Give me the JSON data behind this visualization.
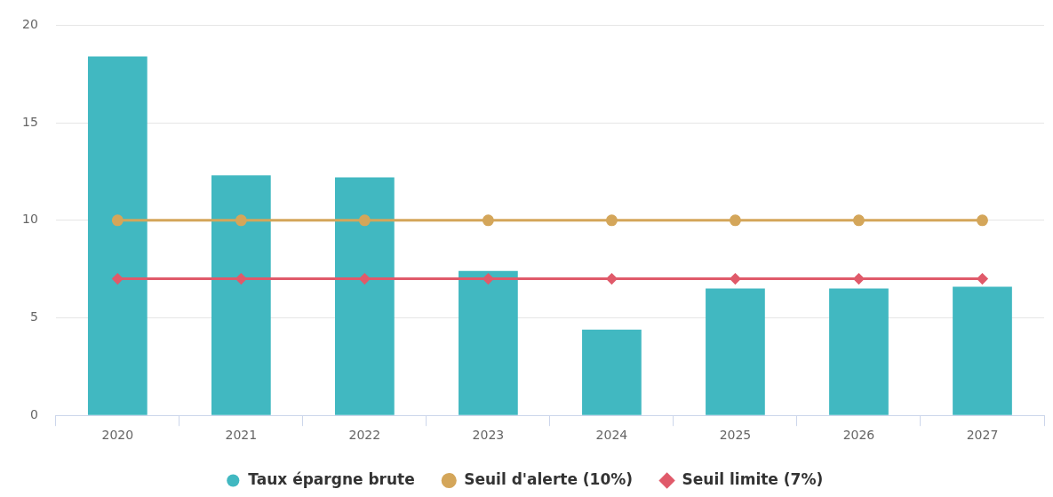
{
  "chart_data": {
    "type": "bar",
    "categories": [
      "2020",
      "2021",
      "2022",
      "2023",
      "2024",
      "2025",
      "2026",
      "2027"
    ],
    "series": [
      {
        "name": "Taux épargne brute",
        "color": "#41b8c1",
        "marker": "circle",
        "values": [
          18.4,
          12.3,
          12.2,
          7.4,
          4.4,
          6.5,
          6.5,
          6.6
        ]
      },
      {
        "name": "Seuil d'alerte (10%)",
        "type": "line",
        "color": "#d4a65a",
        "marker": "circle",
        "values": [
          10,
          10,
          10,
          10,
          10,
          10,
          10,
          10
        ]
      },
      {
        "name": "Seuil limite (7%)",
        "type": "line",
        "color": "#e05a6a",
        "marker": "diamond",
        "values": [
          7,
          7,
          7,
          7,
          7,
          7,
          7,
          7
        ]
      }
    ],
    "ylim": [
      0,
      20
    ],
    "yticks": [
      0,
      5,
      10,
      15,
      20
    ],
    "grid": "y",
    "legend": "bottom"
  }
}
